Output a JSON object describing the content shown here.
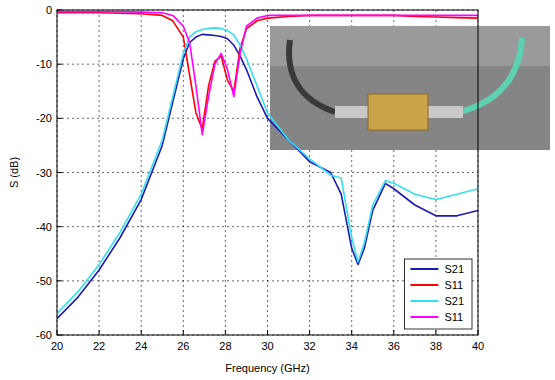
{
  "chart_data": {
    "type": "line",
    "x_label": "Frequency (GHz)",
    "y_label": "S (dB)",
    "x": [
      20,
      21,
      22,
      23,
      24,
      25,
      25.5,
      26,
      26.3,
      26.6,
      26.9,
      27.2,
      27.5,
      27.8,
      28.1,
      28.4,
      28.7,
      29,
      29.5,
      30,
      31,
      32,
      33,
      33.5,
      34,
      34.3,
      34.6,
      35,
      35.6,
      36,
      37,
      38,
      39,
      40
    ],
    "series": [
      {
        "name": "S21",
        "color": "#1a1ab4",
        "values": [
          -57,
          -53,
          -48,
          -42,
          -35,
          -25,
          -17,
          -9,
          -6,
          -5,
          -4.5,
          -4.6,
          -4.7,
          -4.9,
          -5.3,
          -6.5,
          -8.5,
          -11,
          -16,
          -20,
          -24,
          -28,
          -30,
          -34,
          -44,
          -47,
          -44,
          -37,
          -32,
          -33,
          -36,
          -38,
          -38,
          -37
        ]
      },
      {
        "name": "S11",
        "color": "#ff0000",
        "values": [
          -0.5,
          -0.5,
          -0.5,
          -0.6,
          -0.7,
          -1,
          -2,
          -5,
          -12,
          -19,
          -22,
          -14,
          -9.5,
          -8.5,
          -13,
          -15,
          -7,
          -3.5,
          -2,
          -1.5,
          -1.2,
          -1,
          -1,
          -1,
          -1,
          -1,
          -1,
          -1,
          -1,
          -1,
          -1.2,
          -1.3,
          -1.4,
          -1.5
        ]
      },
      {
        "name": "S21",
        "color": "#33e0f0",
        "values": [
          -56,
          -52,
          -47,
          -41,
          -34,
          -24,
          -16,
          -8,
          -5,
          -4,
          -3.6,
          -3.4,
          -3.3,
          -3.4,
          -3.8,
          -4.6,
          -6.5,
          -9,
          -14,
          -19,
          -24,
          -27.5,
          -30.5,
          -31,
          -42,
          -46.5,
          -43,
          -36,
          -31.5,
          -32,
          -34,
          -35,
          -34,
          -33
        ]
      },
      {
        "name": "S11",
        "color": "#ff00ff",
        "values": [
          -0.3,
          -0.3,
          -0.3,
          -0.3,
          -0.4,
          -0.5,
          -1,
          -3,
          -6,
          -14,
          -23,
          -16,
          -10,
          -8,
          -11,
          -16,
          -8,
          -3,
          -1.5,
          -1,
          -1,
          -1,
          -1,
          -1,
          -1,
          -1,
          -1,
          -1,
          -1,
          -1,
          -1,
          -1,
          -1,
          -1
        ]
      }
    ],
    "xlim": [
      20,
      40
    ],
    "xticks": [
      20,
      22,
      24,
      26,
      28,
      30,
      32,
      34,
      36,
      38,
      40
    ],
    "ylim": [
      -60,
      0
    ],
    "yticks": [
      -60,
      -50,
      -40,
      -30,
      -20,
      -10,
      0
    ],
    "grid": true,
    "legend": "lower right"
  }
}
